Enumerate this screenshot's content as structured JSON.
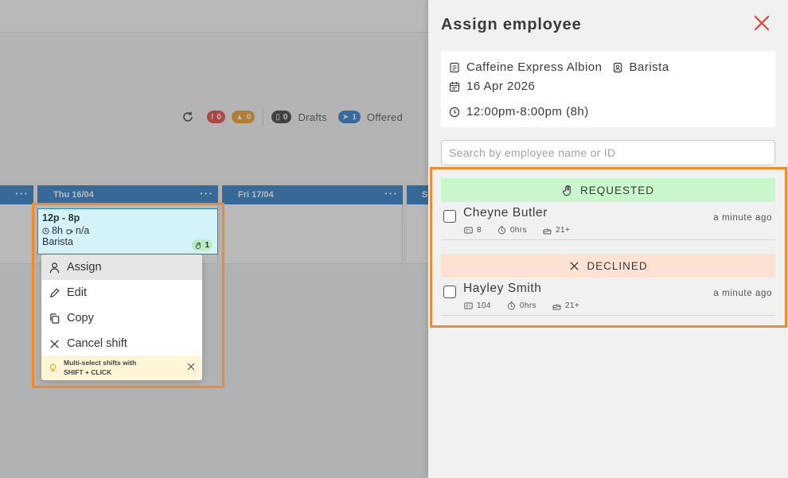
{
  "schedule": {
    "toolbar": {
      "errors_count": "0",
      "warnings_count": "0",
      "drafts_count": "0",
      "drafts_label": "Drafts",
      "offered_count": "1",
      "offered_label": "Offered"
    },
    "days": [
      {
        "label": "Thu 16/04"
      },
      {
        "label": "Fri 17/04"
      },
      {
        "label": "S"
      }
    ],
    "shift_card": {
      "time": "12p - 8p",
      "duration": "8h",
      "break": "n/a",
      "role": "Barista",
      "requests_count": "1"
    },
    "context_menu": {
      "items": [
        {
          "label": "Assign"
        },
        {
          "label": "Edit"
        },
        {
          "label": "Copy"
        },
        {
          "label": "Cancel shift"
        }
      ],
      "tip_line1": "Multi-select shifts with",
      "tip_line2": "SHIFT + CLICK"
    }
  },
  "panel": {
    "title": "Assign employee",
    "location": "Caffeine Express Albion",
    "role": "Barista",
    "date": "16 Apr 2026",
    "time_range": "12:00pm-8:00pm (8h)",
    "search_placeholder": "Search by employee name or ID",
    "groups": [
      {
        "label": "REQUESTED",
        "employees": [
          {
            "name": "Cheyne Butler",
            "ago": "a minute ago",
            "stat_id": "8",
            "stat_hours": "0hrs",
            "stat_age": "21+"
          }
        ]
      },
      {
        "label": "DECLINED",
        "employees": [
          {
            "name": "Hayley Smith",
            "ago": "a minute ago",
            "stat_id": "104",
            "stat_hours": "0hrs",
            "stat_age": "21+"
          }
        ]
      }
    ]
  },
  "colors": {
    "accent_blue": "#2d7ec9",
    "highlight_orange": "#f28a2a",
    "close_red": "#e8453c",
    "requested_green": "#c9f7cb",
    "declined_peach": "#fde2d4"
  }
}
